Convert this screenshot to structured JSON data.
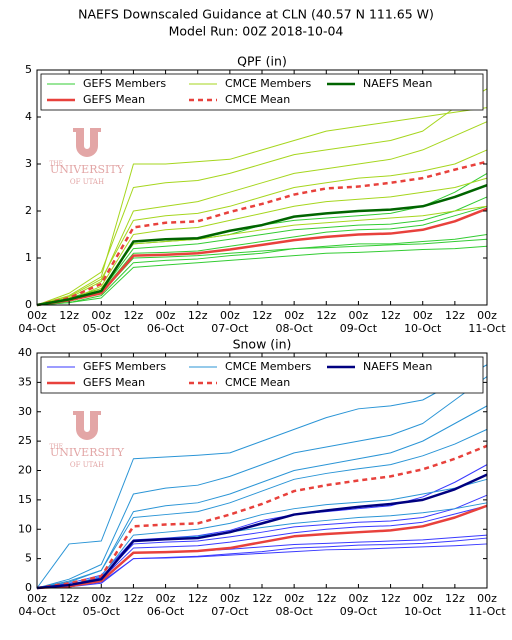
{
  "header": {
    "title": "NAEFS Downscaled Guidance at CLN (40.57 N 111.65 W)",
    "subtitle": "Model Run: 00Z 2018-10-04"
  },
  "watermark": {
    "top": "THE",
    "middle": "UNIVERSITY",
    "bottom": "OF UTAH"
  },
  "chart_data": [
    {
      "type": "line",
      "title": "QPF (in)",
      "x": [
        0,
        12,
        24,
        36,
        48,
        60,
        72,
        84,
        96,
        108,
        120,
        132,
        144,
        156,
        168
      ],
      "xlim": [
        0,
        168
      ],
      "xticks": [
        {
          "value": 0,
          "label": "00z"
        },
        {
          "value": 12,
          "label": "12z"
        },
        {
          "value": 24,
          "label": "00z"
        },
        {
          "value": 36,
          "label": "12z"
        },
        {
          "value": 48,
          "label": "00z"
        },
        {
          "value": 60,
          "label": "12z"
        },
        {
          "value": 72,
          "label": "00z"
        },
        {
          "value": 84,
          "label": "12z"
        },
        {
          "value": 96,
          "label": "00z"
        },
        {
          "value": 108,
          "label": "12z"
        },
        {
          "value": 120,
          "label": "00z"
        },
        {
          "value": 132,
          "label": "12z"
        },
        {
          "value": 144,
          "label": "00z"
        },
        {
          "value": 156,
          "label": "12z"
        },
        {
          "value": 168,
          "label": "00z"
        }
      ],
      "xtick_dates": [
        {
          "value": 0,
          "label": "04-Oct"
        },
        {
          "value": 24,
          "label": "05-Oct"
        },
        {
          "value": 48,
          "label": "06-Oct"
        },
        {
          "value": 72,
          "label": "07-Oct"
        },
        {
          "value": 96,
          "label": "08-Oct"
        },
        {
          "value": 120,
          "label": "09-Oct"
        },
        {
          "value": 144,
          "label": "10-Oct"
        },
        {
          "value": 168,
          "label": "11-Oct"
        }
      ],
      "ylim": [
        0,
        5
      ],
      "yticks": [
        0,
        1,
        2,
        3,
        4,
        5
      ],
      "series": [
        {
          "name": "GEFS Members",
          "color": "#33cc33",
          "width": 1,
          "dash": false,
          "members": [
            [
              0,
              0.05,
              0.2,
              0.9,
              0.95,
              0.98,
              1.05,
              1.1,
              1.2,
              1.25,
              1.3,
              1.3,
              1.35,
              1.4,
              1.5
            ],
            [
              0,
              0.1,
              0.3,
              1.2,
              1.25,
              1.3,
              1.4,
              1.5,
              1.6,
              1.65,
              1.7,
              1.72,
              1.8,
              2.0,
              2.3
            ],
            [
              0,
              0.08,
              0.25,
              1.0,
              1.02,
              1.05,
              1.1,
              1.15,
              1.2,
              1.22,
              1.25,
              1.28,
              1.3,
              1.35,
              1.4
            ],
            [
              0,
              0.15,
              0.35,
              1.3,
              1.35,
              1.4,
              1.5,
              1.7,
              1.8,
              1.85,
              1.9,
              1.95,
              2.1,
              2.4,
              2.8
            ],
            [
              0,
              0.05,
              0.15,
              0.8,
              0.85,
              0.9,
              0.95,
              1.0,
              1.05,
              1.1,
              1.12,
              1.15,
              1.18,
              1.2,
              1.25
            ],
            [
              0,
              0.12,
              0.28,
              1.1,
              1.12,
              1.15,
              1.25,
              1.35,
              1.45,
              1.55,
              1.6,
              1.62,
              1.7,
              1.9,
              2.1
            ]
          ]
        },
        {
          "name": "GEFS Mean",
          "color": "#e8413c",
          "width": 2.5,
          "dash": false,
          "values": [
            0,
            0.1,
            0.25,
            1.05,
            1.07,
            1.1,
            1.18,
            1.28,
            1.38,
            1.45,
            1.5,
            1.52,
            1.6,
            1.78,
            2.05
          ]
        },
        {
          "name": "CMCE Members",
          "color": "#a6d61e",
          "width": 1,
          "dash": false,
          "members": [
            [
              0,
              0.2,
              0.6,
              3.0,
              3.0,
              3.05,
              3.1,
              3.3,
              3.5,
              3.7,
              3.8,
              3.9,
              4.0,
              4.1,
              4.2
            ],
            [
              0,
              0.15,
              0.5,
              2.0,
              2.1,
              2.2,
              2.4,
              2.6,
              2.8,
              2.9,
              3.0,
              3.1,
              3.3,
              3.6,
              3.9
            ],
            [
              0,
              0.1,
              0.4,
              1.5,
              1.6,
              1.65,
              1.8,
              1.95,
              2.1,
              2.2,
              2.25,
              2.3,
              2.4,
              2.5,
              2.7
            ],
            [
              0,
              0.25,
              0.7,
              2.5,
              2.6,
              2.65,
              2.8,
              3.0,
              3.2,
              3.3,
              3.4,
              3.5,
              3.7,
              4.2,
              4.6
            ],
            [
              0,
              0.1,
              0.35,
              1.3,
              1.35,
              1.4,
              1.5,
              1.6,
              1.7,
              1.75,
              1.8,
              1.85,
              1.9,
              2.0,
              2.1
            ],
            [
              0,
              0.18,
              0.55,
              1.8,
              1.9,
              1.95,
              2.1,
              2.3,
              2.5,
              2.6,
              2.7,
              2.75,
              2.85,
              3.0,
              3.3
            ]
          ]
        },
        {
          "name": "CMCE Mean",
          "color": "#e8413c",
          "width": 2.5,
          "dash": true,
          "values": [
            0,
            0.15,
            0.45,
            1.65,
            1.75,
            1.78,
            1.98,
            2.15,
            2.35,
            2.48,
            2.52,
            2.6,
            2.7,
            2.88,
            3.05
          ]
        },
        {
          "name": "NAEFS Mean",
          "color": "#006400",
          "width": 2.5,
          "dash": false,
          "values": [
            0,
            0.12,
            0.3,
            1.35,
            1.4,
            1.42,
            1.58,
            1.7,
            1.88,
            1.95,
            2.0,
            2.03,
            2.1,
            2.3,
            2.55
          ]
        }
      ]
    },
    {
      "type": "line",
      "title": "Snow (in)",
      "x": [
        0,
        12,
        24,
        36,
        48,
        60,
        72,
        84,
        96,
        108,
        120,
        132,
        144,
        156,
        168
      ],
      "xlim": [
        0,
        168
      ],
      "xticks": [
        {
          "value": 0,
          "label": "00z"
        },
        {
          "value": 12,
          "label": "12z"
        },
        {
          "value": 24,
          "label": "00z"
        },
        {
          "value": 36,
          "label": "12z"
        },
        {
          "value": 48,
          "label": "00z"
        },
        {
          "value": 60,
          "label": "12z"
        },
        {
          "value": 72,
          "label": "00z"
        },
        {
          "value": 84,
          "label": "12z"
        },
        {
          "value": 96,
          "label": "00z"
        },
        {
          "value": 108,
          "label": "12z"
        },
        {
          "value": 120,
          "label": "00z"
        },
        {
          "value": 132,
          "label": "12z"
        },
        {
          "value": 144,
          "label": "00z"
        },
        {
          "value": 156,
          "label": "12z"
        },
        {
          "value": 168,
          "label": "00z"
        }
      ],
      "xtick_dates": [
        {
          "value": 0,
          "label": "04-Oct"
        },
        {
          "value": 24,
          "label": "05-Oct"
        },
        {
          "value": 48,
          "label": "06-Oct"
        },
        {
          "value": 72,
          "label": "07-Oct"
        },
        {
          "value": 96,
          "label": "08-Oct"
        },
        {
          "value": 120,
          "label": "09-Oct"
        },
        {
          "value": 144,
          "label": "10-Oct"
        },
        {
          "value": 168,
          "label": "11-Oct"
        }
      ],
      "ylim": [
        0,
        40
      ],
      "yticks": [
        0,
        5,
        10,
        15,
        20,
        25,
        30,
        35,
        40
      ],
      "series": [
        {
          "name": "GEFS Members",
          "color": "#3a3aff",
          "width": 1,
          "dash": false,
          "members": [
            [
              0,
              0.2,
              1,
              5,
              5.2,
              5.4,
              5.8,
              6.2,
              6.8,
              7,
              7.3,
              7.4,
              7.6,
              8,
              8.5
            ],
            [
              0,
              0.5,
              1.8,
              7.5,
              7.8,
              8,
              8.7,
              9.5,
              10.4,
              10.8,
              11.2,
              11.4,
              12,
              13.5,
              15.8
            ],
            [
              0,
              0.3,
              1.2,
              6,
              6.1,
              6.3,
              6.6,
              7,
              7.4,
              7.6,
              7.8,
              8,
              8.2,
              8.6,
              9
            ],
            [
              0,
              0.8,
              2.2,
              8.2,
              8.5,
              8.9,
              9.8,
              11.5,
              12.5,
              13,
              13.5,
              14,
              15.5,
              18,
              21
            ],
            [
              0,
              0.2,
              0.8,
              5,
              5.1,
              5.3,
              5.6,
              5.9,
              6.2,
              6.5,
              6.6,
              6.8,
              7,
              7.2,
              7.5
            ],
            [
              0,
              0.6,
              1.5,
              6.8,
              7,
              7.2,
              7.8,
              8.6,
              9.4,
              10,
              10.4,
              10.6,
              11.2,
              12.6,
              14
            ]
          ]
        },
        {
          "name": "GEFS Mean",
          "color": "#e8413c",
          "width": 2.5,
          "dash": false,
          "values": [
            0,
            0.3,
            1.2,
            6.0,
            6.1,
            6.3,
            6.8,
            7.8,
            8.8,
            9.2,
            9.5,
            9.8,
            10.5,
            12,
            14
          ]
        },
        {
          "name": "CMCE Members",
          "color": "#2b95d6",
          "width": 1,
          "dash": false,
          "members": [
            [
              0,
              7.5,
              8,
              22,
              22.3,
              22.6,
              23,
              25,
              27,
              29,
              30.5,
              31,
              32,
              35,
              38
            ],
            [
              0,
              1,
              3,
              13,
              14,
              14.5,
              16,
              18,
              20,
              21,
              22,
              23,
              25,
              28,
              31
            ],
            [
              0,
              0.5,
              2,
              9,
              9.5,
              10,
              11,
              12.5,
              13.5,
              14.2,
              14.6,
              15,
              16,
              17,
              18.5
            ],
            [
              0,
              1.5,
              4,
              16,
              17,
              17.5,
              19,
              21,
              23,
              24,
              25,
              26,
              28,
              32,
              36
            ],
            [
              0,
              0.3,
              1.5,
              8,
              8.4,
              8.8,
              9.5,
              10.3,
              11,
              11.5,
              12,
              12.3,
              12.8,
              13.5,
              14.5
            ],
            [
              0,
              1.2,
              3,
              12,
              12.5,
              13,
              14.5,
              16.5,
              18.5,
              19.5,
              20.3,
              21,
              22.5,
              24.5,
              27
            ]
          ]
        },
        {
          "name": "CMCE Mean",
          "color": "#e8413c",
          "width": 2.5,
          "dash": true,
          "values": [
            0,
            0.8,
            2.0,
            10.5,
            10.8,
            11,
            12.5,
            14.3,
            16.5,
            17.5,
            18.3,
            19,
            20.2,
            22,
            24.2
          ]
        },
        {
          "name": "NAEFS Mean",
          "color": "#000080",
          "width": 2.5,
          "dash": false,
          "values": [
            0,
            0.5,
            1.5,
            8.0,
            8.3,
            8.5,
            9.5,
            11,
            12.5,
            13.2,
            13.8,
            14.3,
            15,
            16.8,
            19.3
          ]
        }
      ]
    }
  ]
}
